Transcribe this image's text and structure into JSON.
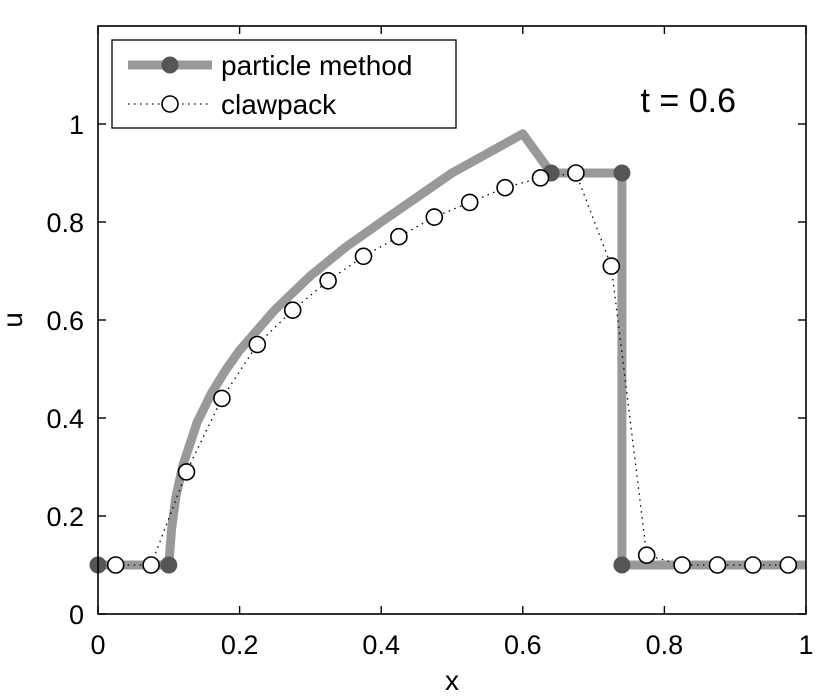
{
  "chart_data": {
    "type": "line",
    "title": "",
    "xlabel": "x",
    "ylabel": "u",
    "xlim": [
      0,
      1
    ],
    "ylim": [
      0,
      1.2
    ],
    "x_ticks": [
      "0",
      "0.2",
      "0.4",
      "0.6",
      "0.8",
      "1"
    ],
    "y_ticks": [
      "0",
      "0.2",
      "0.4",
      "0.6",
      "0.8",
      "1"
    ],
    "x_tick_values": [
      0,
      0.2,
      0.4,
      0.6,
      0.8,
      1
    ],
    "y_tick_values": [
      0,
      0.2,
      0.4,
      0.6,
      0.8,
      1
    ],
    "grid": false,
    "legend_position": "top-left",
    "annotation": "t = 0.6",
    "series": [
      {
        "name": "particle method",
        "color": "#999999",
        "marker_color": "#555555",
        "marker_points": [
          {
            "x": 0.0,
            "y": 0.1
          },
          {
            "x": 0.1,
            "y": 0.1
          },
          {
            "x": 0.64,
            "y": 0.9
          },
          {
            "x": 0.74,
            "y": 0.9
          },
          {
            "x": 0.74,
            "y": 0.1
          }
        ],
        "x": [
          0.0,
          0.1,
          0.104,
          0.11,
          0.12,
          0.14,
          0.16,
          0.18,
          0.2,
          0.25,
          0.3,
          0.35,
          0.4,
          0.45,
          0.5,
          0.55,
          0.6,
          0.64,
          0.74,
          0.74,
          1.0
        ],
        "y": [
          0.1,
          0.1,
          0.174,
          0.239,
          0.304,
          0.391,
          0.45,
          0.497,
          0.538,
          0.621,
          0.69,
          0.749,
          0.8,
          0.85,
          0.9,
          0.94,
          0.98,
          0.9,
          0.9,
          0.1,
          0.1
        ]
      },
      {
        "name": "clawpack",
        "color": "#000000",
        "x": [
          0.025,
          0.075,
          0.125,
          0.175,
          0.225,
          0.275,
          0.325,
          0.375,
          0.425,
          0.475,
          0.525,
          0.575,
          0.625,
          0.675,
          0.725,
          0.775,
          0.825,
          0.875,
          0.925,
          0.975
        ],
        "y": [
          0.1,
          0.1,
          0.29,
          0.44,
          0.55,
          0.62,
          0.68,
          0.73,
          0.77,
          0.81,
          0.84,
          0.87,
          0.89,
          0.9,
          0.71,
          0.12,
          0.1,
          0.1,
          0.1,
          0.1
        ]
      }
    ]
  }
}
